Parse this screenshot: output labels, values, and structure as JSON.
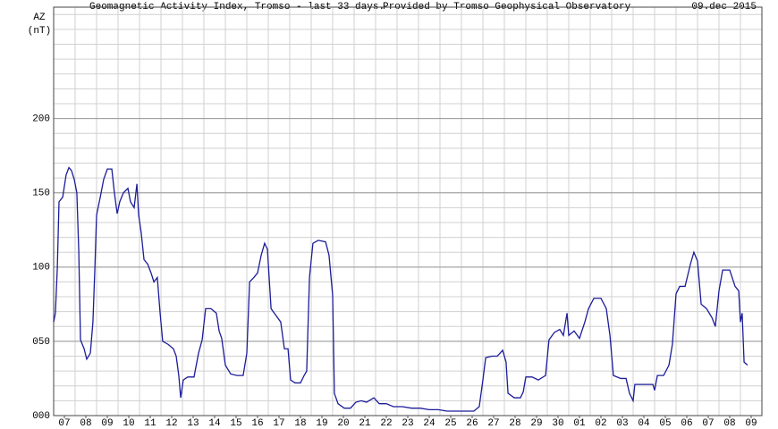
{
  "chart_data": {
    "type": "line",
    "title": "Geomagnetic Activity Index, Tromso - last 33 days.",
    "subtitle": "Provided by Tromso Geophysical Observatory",
    "date": "09.dec 2015",
    "y_label": "AZ",
    "y_unit": "(nT)",
    "xlim": [
      0,
      33
    ],
    "ylim": [
      0,
      275
    ],
    "yticks": [
      {
        "value": 0,
        "label": "000"
      },
      {
        "value": 50,
        "label": "050"
      },
      100,
      150,
      200
    ],
    "xticks": [
      {
        "value": 0.5,
        "label": "07"
      },
      {
        "value": 1.5,
        "label": "08"
      },
      {
        "value": 2.5,
        "label": "09"
      },
      {
        "value": 3.5,
        "label": "10"
      },
      {
        "value": 4.5,
        "label": "11"
      },
      {
        "value": 5.5,
        "label": "12"
      },
      {
        "value": 6.5,
        "label": "13"
      },
      {
        "value": 7.5,
        "label": "14"
      },
      {
        "value": 8.5,
        "label": "15"
      },
      {
        "value": 9.5,
        "label": "16"
      },
      {
        "value": 10.5,
        "label": "17"
      },
      {
        "value": 11.5,
        "label": "18"
      },
      {
        "value": 12.5,
        "label": "19"
      },
      {
        "value": 13.5,
        "label": "20"
      },
      {
        "value": 14.5,
        "label": "21"
      },
      {
        "value": 15.5,
        "label": "22"
      },
      {
        "value": 16.5,
        "label": "23"
      },
      {
        "value": 17.5,
        "label": "24"
      },
      {
        "value": 18.5,
        "label": "25"
      },
      {
        "value": 19.5,
        "label": "26"
      },
      {
        "value": 20.5,
        "label": "27"
      },
      {
        "value": 21.5,
        "label": "28"
      },
      {
        "value": 22.5,
        "label": "29"
      },
      {
        "value": 23.5,
        "label": "30"
      },
      {
        "value": 24.5,
        "label": "01"
      },
      {
        "value": 25.5,
        "label": "02"
      },
      {
        "value": 26.5,
        "label": "03"
      },
      {
        "value": 27.5,
        "label": "04"
      },
      {
        "value": 28.5,
        "label": "05"
      },
      {
        "value": 29.5,
        "label": "06"
      },
      {
        "value": 30.5,
        "label": "07"
      },
      {
        "value": 31.5,
        "label": "08"
      },
      {
        "value": 32.5,
        "label": "09"
      }
    ],
    "grid": true,
    "series": [
      {
        "color": "#1c1c9a",
        "x": [
          0,
          0.08,
          0.17,
          0.25,
          0.42,
          0.58,
          0.71,
          0.83,
          0.96,
          1.08,
          1.17,
          1.25,
          1.42,
          1.54,
          1.71,
          1.83,
          1.92,
          2,
          2.17,
          2.33,
          2.5,
          2.71,
          2.83,
          2.96,
          3.08,
          3.25,
          3.46,
          3.58,
          3.75,
          3.88,
          3.96,
          4.08,
          4.21,
          4.38,
          4.54,
          4.67,
          4.83,
          4.96,
          5.08,
          5.33,
          5.58,
          5.71,
          5.83,
          5.92,
          6.04,
          6.25,
          6.54,
          6.75,
          6.92,
          7.08,
          7.33,
          7.58,
          7.71,
          7.83,
          8,
          8.25,
          8.54,
          8.83,
          9,
          9.13,
          9.33,
          9.5,
          9.67,
          9.83,
          9.96,
          10.13,
          10.33,
          10.58,
          10.75,
          10.92,
          11.04,
          11.25,
          11.5,
          11.67,
          11.79,
          11.92,
          12.08,
          12.33,
          12.67,
          12.83,
          13,
          13.08,
          13.25,
          13.54,
          13.83,
          14.08,
          14.33,
          14.58,
          14.92,
          15.17,
          15.5,
          15.83,
          16.25,
          16.67,
          17.08,
          17.5,
          17.92,
          18.33,
          18.75,
          19.17,
          19.58,
          19.83,
          20,
          20.13,
          20.42,
          20.67,
          20.92,
          21.08,
          21.17,
          21.46,
          21.75,
          21.88,
          22,
          22.29,
          22.58,
          22.92,
          23.08,
          23.33,
          23.58,
          23.75,
          23.92,
          24,
          24.25,
          24.5,
          24.75,
          24.92,
          25.17,
          25.5,
          25.75,
          25.92,
          26.08,
          26.42,
          26.67,
          26.83,
          27,
          27.08,
          27.33,
          27.67,
          27.92,
          28,
          28.13,
          28.42,
          28.67,
          28.83,
          29,
          29.17,
          29.42,
          29.67,
          29.83,
          30,
          30.17,
          30.42,
          30.67,
          30.83,
          31,
          31.17,
          31.5,
          31.75,
          31.92,
          32,
          32.08,
          32.17,
          32.33
        ],
        "values": [
          63,
          69,
          99,
          144,
          147,
          162,
          167,
          165,
          159,
          150,
          111,
          51,
          45,
          38,
          42,
          63,
          99,
          135,
          147,
          159,
          166,
          166,
          150,
          136,
          144,
          150,
          153,
          144,
          140,
          156,
          135,
          123,
          105,
          102,
          96,
          90,
          93,
          69,
          50,
          48,
          45,
          40,
          27,
          12,
          24,
          26,
          26,
          42,
          51,
          72,
          72,
          69,
          57,
          52,
          34,
          28,
          27,
          27,
          42,
          90,
          93,
          96,
          108,
          116,
          112,
          72,
          68,
          63,
          45,
          45,
          24,
          22,
          22,
          27,
          30,
          93,
          116,
          118,
          117,
          108,
          81,
          15,
          8,
          5,
          5,
          9,
          10,
          9,
          12,
          8,
          8,
          6,
          6,
          5,
          5,
          4,
          4,
          3,
          3,
          3,
          3,
          6,
          24,
          39,
          40,
          40,
          44,
          36,
          15,
          12,
          12,
          16,
          26,
          26,
          24,
          27,
          51,
          56,
          58,
          54,
          69,
          54,
          57,
          52,
          63,
          72,
          79,
          79,
          72,
          54,
          27,
          25,
          25,
          15,
          10,
          21,
          21,
          21,
          21,
          17,
          27,
          27,
          34,
          48,
          82,
          87,
          87,
          102,
          110,
          104,
          75,
          72,
          66,
          60,
          84,
          98,
          98,
          87,
          84,
          63,
          69,
          36,
          34
        ]
      }
    ]
  }
}
